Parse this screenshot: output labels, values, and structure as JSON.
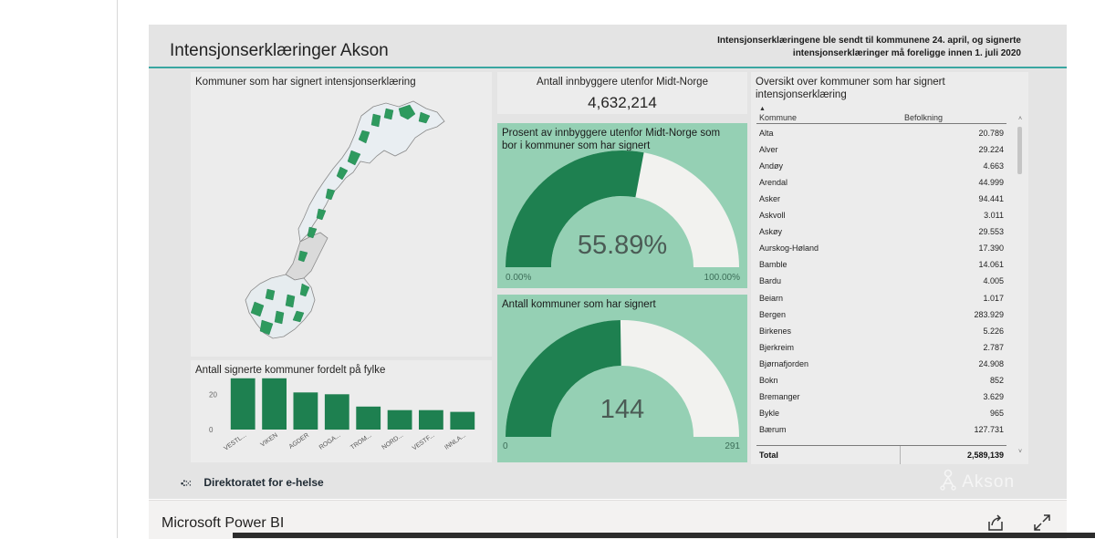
{
  "report": {
    "title": "Intensjonserklæringer Akson",
    "header_note_line1": "Intensjonserklæringene ble sendt til kommunene 24. april, og signerte",
    "header_note_line2": "intensjonserklæringer må foreligge innen 1. juli 2020"
  },
  "map_panel": {
    "title": "Kommuner som har signert intensjonserklæring"
  },
  "kpi_population": {
    "title": "Antall innbyggere utenfor Midt-Norge",
    "value": "4,632,214"
  },
  "gauge_percent": {
    "title_line1": "Prosent av innbyggere utenfor Midt-Norge som",
    "title_line2": "bor i kommuner som har signert",
    "value_label": "55.89%",
    "min_label": "0.00%",
    "max_label": "100.00%",
    "fraction": 0.5589
  },
  "gauge_count": {
    "title": "Antall kommuner som har signert",
    "value_label": "144",
    "min_label": "0",
    "max_label": "291",
    "fraction": 0.4948
  },
  "bar_panel": {
    "title": "Antall signerte kommuner fordelt på fylke"
  },
  "chart_data": {
    "type": "bar",
    "title": "Antall signerte kommuner fordelt på fylke",
    "categories": [
      "VESTL...",
      "VIKEN",
      "AGDER",
      "ROGA...",
      "TROM...",
      "NORD...",
      "VESTF...",
      "INNLA..."
    ],
    "values": [
      29,
      29,
      21,
      20,
      13,
      11,
      11,
      10
    ],
    "y_ticks": [
      0,
      20
    ],
    "ylim": [
      0,
      32
    ],
    "grid": false
  },
  "table": {
    "title_line1": "Oversikt over kommuner som har signert",
    "title_line2": "intensjonserklæring",
    "col_kommune": "Kommune",
    "col_befolkning": "Befolkning",
    "sort_indicator": "▲",
    "rows": [
      {
        "name": "Alta",
        "pop": "20.789"
      },
      {
        "name": "Alver",
        "pop": "29.224"
      },
      {
        "name": "Andøy",
        "pop": "4.663"
      },
      {
        "name": "Arendal",
        "pop": "44.999"
      },
      {
        "name": "Asker",
        "pop": "94.441"
      },
      {
        "name": "Askvoll",
        "pop": "3.011"
      },
      {
        "name": "Askøy",
        "pop": "29.553"
      },
      {
        "name": "Aurskog-Høland",
        "pop": "17.390"
      },
      {
        "name": "Bamble",
        "pop": "14.061"
      },
      {
        "name": "Bardu",
        "pop": "4.005"
      },
      {
        "name": "Beiarn",
        "pop": "1.017"
      },
      {
        "name": "Bergen",
        "pop": "283.929"
      },
      {
        "name": "Birkenes",
        "pop": "5.226"
      },
      {
        "name": "Bjerkreim",
        "pop": "2.787"
      },
      {
        "name": "Bjørnafjorden",
        "pop": "24.908"
      },
      {
        "name": "Bokn",
        "pop": "852"
      },
      {
        "name": "Bremanger",
        "pop": "3.629"
      },
      {
        "name": "Bykle",
        "pop": "965"
      },
      {
        "name": "Bærum",
        "pop": "127.731"
      }
    ],
    "total_label": "Total",
    "total_value": "2,589,139"
  },
  "logos": {
    "directorate": "Direktoratet for e-helse",
    "akson": "Akson"
  },
  "footer": {
    "brand": "Microsoft Power BI"
  },
  "icons": {
    "share": "share-icon",
    "expand": "expand-icon"
  },
  "colors": {
    "signed_green": "#1e8050",
    "unsigned_white": "#f2f2ef",
    "gauge_bg": "#95d0b4",
    "accent_teal": "#3aa6a1"
  }
}
